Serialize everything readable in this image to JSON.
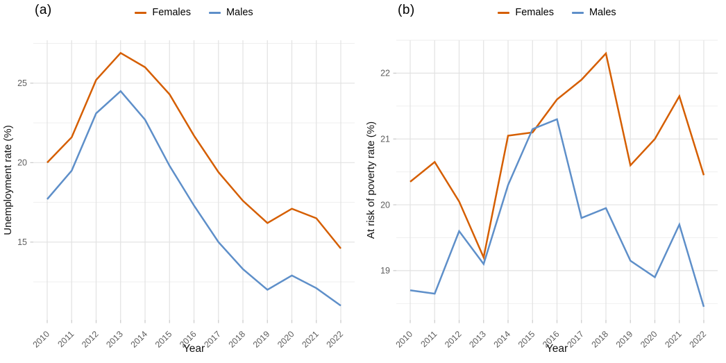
{
  "figure": {
    "background": "#ffffff",
    "palette": {
      "females": "#D55E00",
      "males": "#5E8FC9",
      "grid_major": "#E2E2E2",
      "grid_minor": "#EDEDED",
      "tick_mark": "#C9C9C9",
      "tick_label": "#5E5E5E",
      "axis_title": "#111111"
    }
  },
  "chart_data": [
    {
      "type": "line",
      "tag": "(a)",
      "xlabel": "Year",
      "ylabel": "Unemployment rate (%)",
      "x": [
        2010,
        2011,
        2012,
        2013,
        2014,
        2015,
        2016,
        2017,
        2018,
        2019,
        2020,
        2021,
        2022
      ],
      "series": [
        {
          "name": "Females",
          "color": "#D55E00",
          "values": [
            20.0,
            21.6,
            25.2,
            26.9,
            26.0,
            24.3,
            21.7,
            19.4,
            17.6,
            16.2,
            17.1,
            16.5,
            14.6
          ]
        },
        {
          "name": "Males",
          "color": "#5E8FC9",
          "values": [
            17.7,
            19.5,
            23.1,
            24.5,
            22.7,
            19.8,
            17.3,
            15.0,
            13.3,
            12.0,
            12.9,
            12.1,
            11.0
          ]
        }
      ],
      "ylim": [
        10.1,
        27.7
      ],
      "yticks": [
        15,
        20,
        25
      ],
      "yminor": [
        12.5,
        17.5,
        22.5,
        27.5
      ],
      "grid": true,
      "legend_position": "top"
    },
    {
      "type": "line",
      "tag": "(b)",
      "xlabel": "Year",
      "ylabel": "At risk of poverty rate (%)",
      "x": [
        2010,
        2011,
        2012,
        2013,
        2014,
        2015,
        2016,
        2017,
        2018,
        2019,
        2020,
        2021,
        2022
      ],
      "series": [
        {
          "name": "Females",
          "color": "#D55E00",
          "values": [
            20.35,
            20.65,
            20.05,
            19.2,
            21.05,
            21.1,
            21.6,
            21.9,
            22.3,
            20.6,
            21.0,
            21.65,
            20.45
          ]
        },
        {
          "name": "Males",
          "color": "#5E8FC9",
          "values": [
            18.7,
            18.65,
            19.6,
            19.1,
            20.3,
            21.15,
            21.3,
            19.8,
            19.95,
            19.15,
            18.9,
            19.7,
            18.45
          ]
        }
      ],
      "ylim": [
        18.25,
        22.5
      ],
      "yticks": [
        19,
        20,
        21,
        22
      ],
      "yminor": [
        18.5,
        19.5,
        20.5,
        21.5,
        22.5
      ],
      "grid": true,
      "legend_position": "top"
    }
  ]
}
